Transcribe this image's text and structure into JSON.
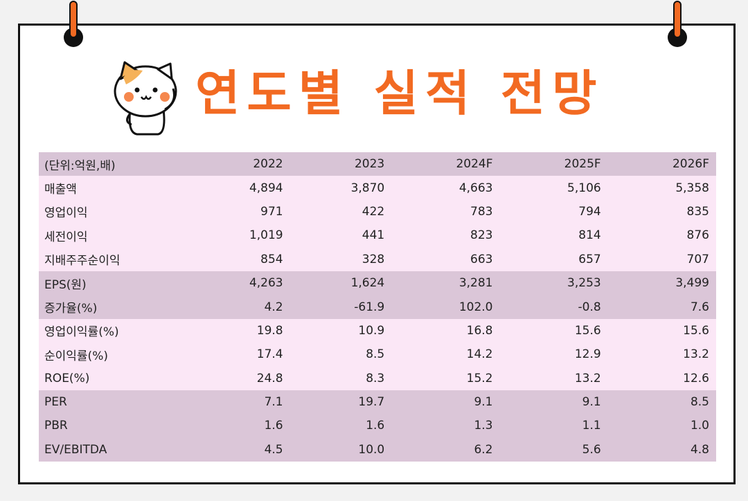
{
  "title": "연도별 실적 전망",
  "table": {
    "header": [
      "(단위:억원,배)",
      "2022",
      "2023",
      "2024F",
      "2025F",
      "2026F"
    ],
    "rows": [
      {
        "label": "매출액",
        "values": [
          "4,894",
          "3,870",
          "4,663",
          "5,106",
          "5,358"
        ],
        "group": "light"
      },
      {
        "label": "영업이익",
        "values": [
          "971",
          "422",
          "783",
          "794",
          "835"
        ],
        "group": "light"
      },
      {
        "label": "세전이익",
        "values": [
          "1,019",
          "441",
          "823",
          "814",
          "876"
        ],
        "group": "light"
      },
      {
        "label": "지배주주순이익",
        "values": [
          "854",
          "328",
          "663",
          "657",
          "707"
        ],
        "group": "light"
      },
      {
        "label": "EPS(원)",
        "values": [
          "4,263",
          "1,624",
          "3,281",
          "3,253",
          "3,499"
        ],
        "group": "dark"
      },
      {
        "label": "증가율(%)",
        "values": [
          "4.2",
          "-61.9",
          "102.0",
          "-0.8",
          "7.6"
        ],
        "group": "dark"
      },
      {
        "label": "영업이익률(%)",
        "values": [
          "19.8",
          "10.9",
          "16.8",
          "15.6",
          "15.6"
        ],
        "group": "light"
      },
      {
        "label": "순이익률(%)",
        "values": [
          "17.4",
          "8.5",
          "14.2",
          "12.9",
          "13.2"
        ],
        "group": "light"
      },
      {
        "label": "ROE(%)",
        "values": [
          "24.8",
          "8.3",
          "15.2",
          "13.2",
          "12.6"
        ],
        "group": "light"
      },
      {
        "label": "PER",
        "values": [
          "7.1",
          "19.7",
          "9.1",
          "9.1",
          "8.5"
        ],
        "group": "dark"
      },
      {
        "label": "PBR",
        "values": [
          "1.6",
          "1.6",
          "1.3",
          "1.1",
          "1.0"
        ],
        "group": "dark"
      },
      {
        "label": "EV/EBITDA",
        "values": [
          "4.5",
          "10.0",
          "6.2",
          "5.6",
          "4.8"
        ],
        "group": "dark"
      }
    ]
  },
  "colors": {
    "accent": "#f26a22",
    "header_bg": "#d8c4d6",
    "light_bg": "#fbe7f6",
    "dark_bg": "#dbc6d8"
  },
  "icons": {
    "mascot": "cat-mascot-icon",
    "pin": "push-pin-icon"
  }
}
